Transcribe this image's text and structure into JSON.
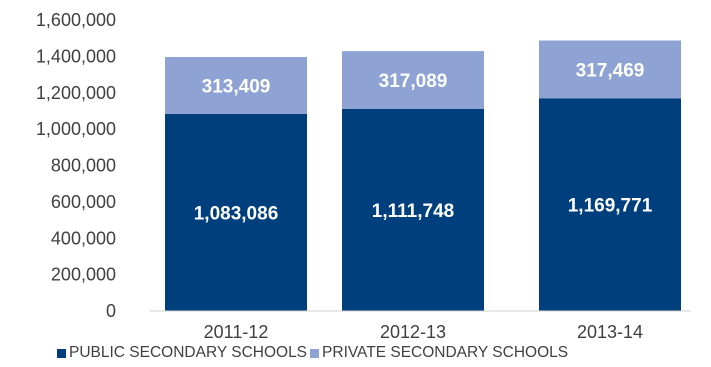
{
  "chart_data": {
    "type": "bar",
    "stacked": true,
    "categories": [
      "2011-12",
      "2012-13",
      "2013-14"
    ],
    "series": [
      {
        "name": "PUBLIC SECONDARY SCHOOLS",
        "values": [
          1083086,
          1111748,
          1169771
        ],
        "labels": [
          "1,083,086",
          "1,111,748",
          "1,169,771"
        ],
        "color": "#003f7d"
      },
      {
        "name": "PRIVATE SECONDARY SCHOOLS",
        "values": [
          313409,
          317089,
          317469
        ],
        "labels": [
          "313,409",
          "317,089",
          "317,469"
        ],
        "color": "#8ea2d4"
      }
    ],
    "ylim": [
      0,
      1600000
    ],
    "yticks": [
      0,
      200000,
      400000,
      600000,
      800000,
      1000000,
      1200000,
      1400000,
      1600000
    ],
    "ytick_labels": [
      "0",
      "200,000",
      "400,000",
      "600,000",
      "800,000",
      "1,000,000",
      "1,200,000",
      "1,400,000",
      "1,600,000"
    ],
    "grid": false,
    "legend_position": "bottom"
  }
}
